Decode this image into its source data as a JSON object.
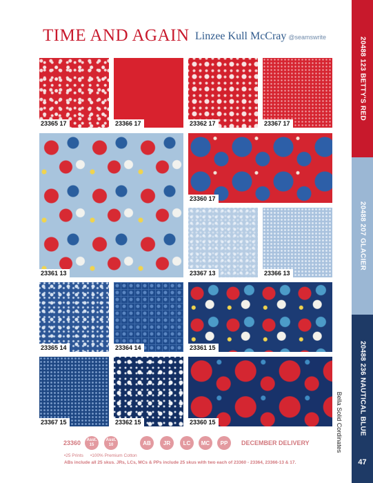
{
  "header": {
    "title": "TIME AND AGAIN",
    "designer": "Linzee Kull McCray",
    "handle": "@seamswrite"
  },
  "swatches": [
    {
      "code": "23365 17",
      "pattern": "red-floral"
    },
    {
      "code": "23366 17",
      "pattern": "red-solid"
    },
    {
      "code": "23362 17",
      "pattern": "red-blossom"
    },
    {
      "code": "23367 17",
      "pattern": "red-dot"
    },
    {
      "code": "23361 13",
      "pattern": "light-big"
    },
    {
      "code": "23360 17",
      "pattern": "red-big"
    },
    {
      "code": "23367 13",
      "pattern": "light-small"
    },
    {
      "code": "23366 13",
      "pattern": "light-dot"
    },
    {
      "code": "23365 14",
      "pattern": "navy-floral"
    },
    {
      "code": "23364 14",
      "pattern": "navy-tile"
    },
    {
      "code": "23361 15",
      "pattern": "navy-mixed"
    },
    {
      "code": "23367 15",
      "pattern": "navy-dot"
    },
    {
      "code": "23362 15",
      "pattern": "navy-blossom"
    },
    {
      "code": "23360 15",
      "pattern": "navy-big"
    }
  ],
  "side_bars": [
    {
      "label": "20488 123 BETTY'S RED",
      "color": "#c8192c"
    },
    {
      "label": "20488 207 GLACIER",
      "color": "#9bb7d4"
    },
    {
      "label": "20488 236 NAUTICAL BLUE",
      "color": "#1e3a66"
    }
  ],
  "side_note": "Bella Solid Cordinates",
  "page_number": "47",
  "footer": {
    "collection_code": "23360",
    "assortments": [
      {
        "label": "Asst.",
        "count": "15"
      },
      {
        "label": "Asst.",
        "count": "10"
      }
    ],
    "precuts": [
      "AB",
      "JR",
      "LC",
      "MC",
      "PP"
    ],
    "delivery": "DECEMBER DELIVERY",
    "notes": [
      "•25 Prints",
      "•100% Premium Cotton"
    ],
    "fine_print": "ABs include all 25 skus. JRs, LCs, MCs & PPs include 25 skus with two each of 23360 - 23364, 23366-13 & 17."
  }
}
